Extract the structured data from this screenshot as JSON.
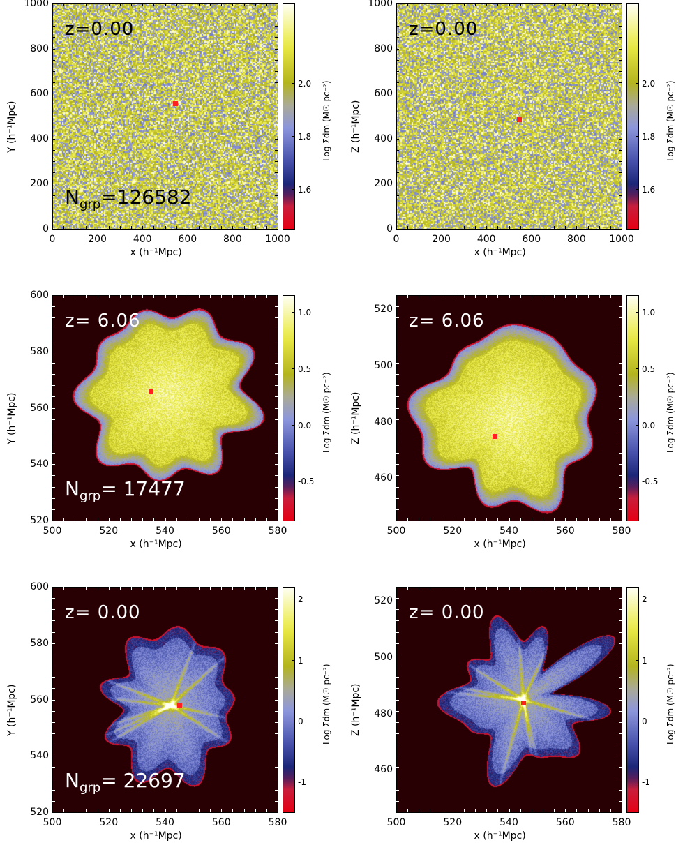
{
  "chart_data": [
    {
      "type": "heatmap",
      "row": 1,
      "col": 1,
      "title": "z=0.00",
      "redshift_label": "z=0.00",
      "ngrp_label": "N",
      "ngrp_sub": "grp",
      "ngrp_value": "=126582",
      "xlabel": "x (h⁻¹Mpc)",
      "ylabel": "Y (h⁻¹Mpc)",
      "xlim": [
        0,
        1000
      ],
      "ylim": [
        0,
        1000
      ],
      "xticks": [
        "0",
        "200",
        "400",
        "600",
        "800",
        "1000"
      ],
      "xtick_values": [
        0,
        200,
        400,
        600,
        800,
        1000
      ],
      "yticks": [
        "0",
        "200",
        "400",
        "600",
        "800",
        "1000"
      ],
      "ytick_values": [
        0,
        200,
        400,
        600,
        800,
        1000
      ],
      "colorbar_label": "Log Σdm (M☉ pc⁻²)",
      "colorbar_range": [
        1.45,
        2.3
      ],
      "colorbar_ticks": [
        "2.0",
        "1.8",
        "1.6"
      ],
      "colorbar_tick_values": [
        2.0,
        1.8,
        1.6
      ],
      "marker": {
        "x": 545,
        "y": 558
      },
      "morphology": "uniform"
    },
    {
      "type": "heatmap",
      "row": 1,
      "col": 2,
      "title": "z=0.00",
      "redshift_label": "z=0.00",
      "xlabel": "x (h⁻¹Mpc)",
      "ylabel": "Z (h⁻¹Mpc)",
      "xlim": [
        0,
        1000
      ],
      "ylim": [
        0,
        1000
      ],
      "xticks": [
        "0",
        "200",
        "400",
        "600",
        "800",
        "1000"
      ],
      "xtick_values": [
        0,
        200,
        400,
        600,
        800,
        1000
      ],
      "yticks": [
        "0",
        "200",
        "400",
        "600",
        "800",
        "1000"
      ],
      "ytick_values": [
        0,
        200,
        400,
        600,
        800,
        1000
      ],
      "colorbar_label": "Log Σdm (M☉ pc⁻²)",
      "colorbar_range": [
        1.45,
        2.3
      ],
      "colorbar_ticks": [
        "2.0",
        "1.8",
        "1.6"
      ],
      "colorbar_tick_values": [
        2.0,
        1.8,
        1.6
      ],
      "marker": {
        "x": 545,
        "y": 485
      },
      "morphology": "uniform"
    },
    {
      "type": "heatmap",
      "row": 2,
      "col": 1,
      "title": "z= 6.06",
      "redshift_label": "z= 6.06",
      "ngrp_label": "N",
      "ngrp_sub": "grp",
      "ngrp_value": "= 17477",
      "xlabel": "x (h⁻¹Mpc)",
      "ylabel": "Y (h⁻¹Mpc)",
      "xlim": [
        500,
        580
      ],
      "ylim": [
        520,
        600
      ],
      "xticks": [
        "500",
        "520",
        "540",
        "560",
        "580"
      ],
      "xtick_values": [
        500,
        520,
        540,
        560,
        580
      ],
      "yticks": [
        "520",
        "540",
        "560",
        "580",
        "600"
      ],
      "ytick_values": [
        520,
        540,
        560,
        580,
        600
      ],
      "colorbar_label": "Log Σdm (M☉ pc⁻²)",
      "colorbar_range": [
        -0.85,
        1.15
      ],
      "colorbar_ticks": [
        "1.0",
        "0.5",
        "0.0",
        "-0.5"
      ],
      "colorbar_tick_values": [
        1.0,
        0.5,
        0.0,
        -0.5
      ],
      "marker": {
        "x": 535,
        "y": 566
      },
      "morphology": "blob",
      "blob_center": [
        541,
        565
      ],
      "blob_radius": 30
    },
    {
      "type": "heatmap",
      "row": 2,
      "col": 2,
      "title": "z= 6.06",
      "redshift_label": "z= 6.06",
      "xlabel": "x (h⁻¹Mpc)",
      "ylabel": "Z (h⁻¹Mpc)",
      "xlim": [
        500,
        580
      ],
      "ylim": [
        445,
        525
      ],
      "xticks": [
        "500",
        "520",
        "540",
        "560",
        "580"
      ],
      "xtick_values": [
        500,
        520,
        540,
        560,
        580
      ],
      "yticks": [
        "460",
        "480",
        "500",
        "520"
      ],
      "ytick_values": [
        460,
        480,
        500,
        520
      ],
      "colorbar_label": "Log Σdm (M☉ pc⁻²)",
      "colorbar_range": [
        -0.85,
        1.15
      ],
      "colorbar_ticks": [
        "1.0",
        "0.5",
        "0.0",
        "-0.5"
      ],
      "colorbar_tick_values": [
        1.0,
        0.5,
        0.0,
        -0.5
      ],
      "marker": {
        "x": 535,
        "y": 475
      },
      "morphology": "blob",
      "blob_center": [
        540,
        482
      ],
      "blob_radius": 31
    },
    {
      "type": "heatmap",
      "row": 3,
      "col": 1,
      "title": "z= 0.00",
      "redshift_label": "z= 0.00",
      "ngrp_label": "N",
      "ngrp_sub": "grp",
      "ngrp_value": "= 22697",
      "xlabel": "x (h⁻¹Mpc)",
      "ylabel": "Y (h⁻¹Mpc)",
      "xlim": [
        500,
        580
      ],
      "ylim": [
        520,
        600
      ],
      "xticks": [
        "500",
        "520",
        "540",
        "560",
        "580"
      ],
      "xtick_values": [
        500,
        520,
        540,
        560,
        580
      ],
      "yticks": [
        "520",
        "540",
        "560",
        "580",
        "600"
      ],
      "ytick_values": [
        520,
        540,
        560,
        580,
        600
      ],
      "colorbar_label": "Log Σdm (M☉ pc⁻²)",
      "colorbar_range": [
        -1.5,
        2.2
      ],
      "colorbar_ticks": [
        "2",
        "1",
        "0",
        "-1"
      ],
      "colorbar_tick_values": [
        2,
        1,
        0,
        -1
      ],
      "marker": {
        "x": 545,
        "y": 558
      },
      "morphology": "web",
      "blob_center": [
        542,
        558
      ],
      "blob_radius": 24
    },
    {
      "type": "heatmap",
      "row": 3,
      "col": 2,
      "title": "z= 0.00",
      "redshift_label": "z= 0.00",
      "xlabel": "x (h⁻¹Mpc)",
      "ylabel": "Z (h⁻¹Mpc)",
      "xlim": [
        500,
        580
      ],
      "ylim": [
        445,
        525
      ],
      "xticks": [
        "500",
        "520",
        "540",
        "560",
        "580"
      ],
      "xtick_values": [
        500,
        520,
        540,
        560,
        580
      ],
      "yticks": [
        "460",
        "480",
        "500",
        "520"
      ],
      "ytick_values": [
        460,
        480,
        500,
        520
      ],
      "colorbar_label": "Log Σdm (M☉ pc⁻²)",
      "colorbar_range": [
        -1.5,
        2.2
      ],
      "colorbar_ticks": [
        "2",
        "1",
        "0",
        "-1"
      ],
      "colorbar_tick_values": [
        2,
        1,
        0,
        -1
      ],
      "marker": {
        "x": 545,
        "y": 484
      },
      "morphology": "web",
      "blob_center": [
        545,
        485
      ],
      "blob_radius": 24
    }
  ]
}
